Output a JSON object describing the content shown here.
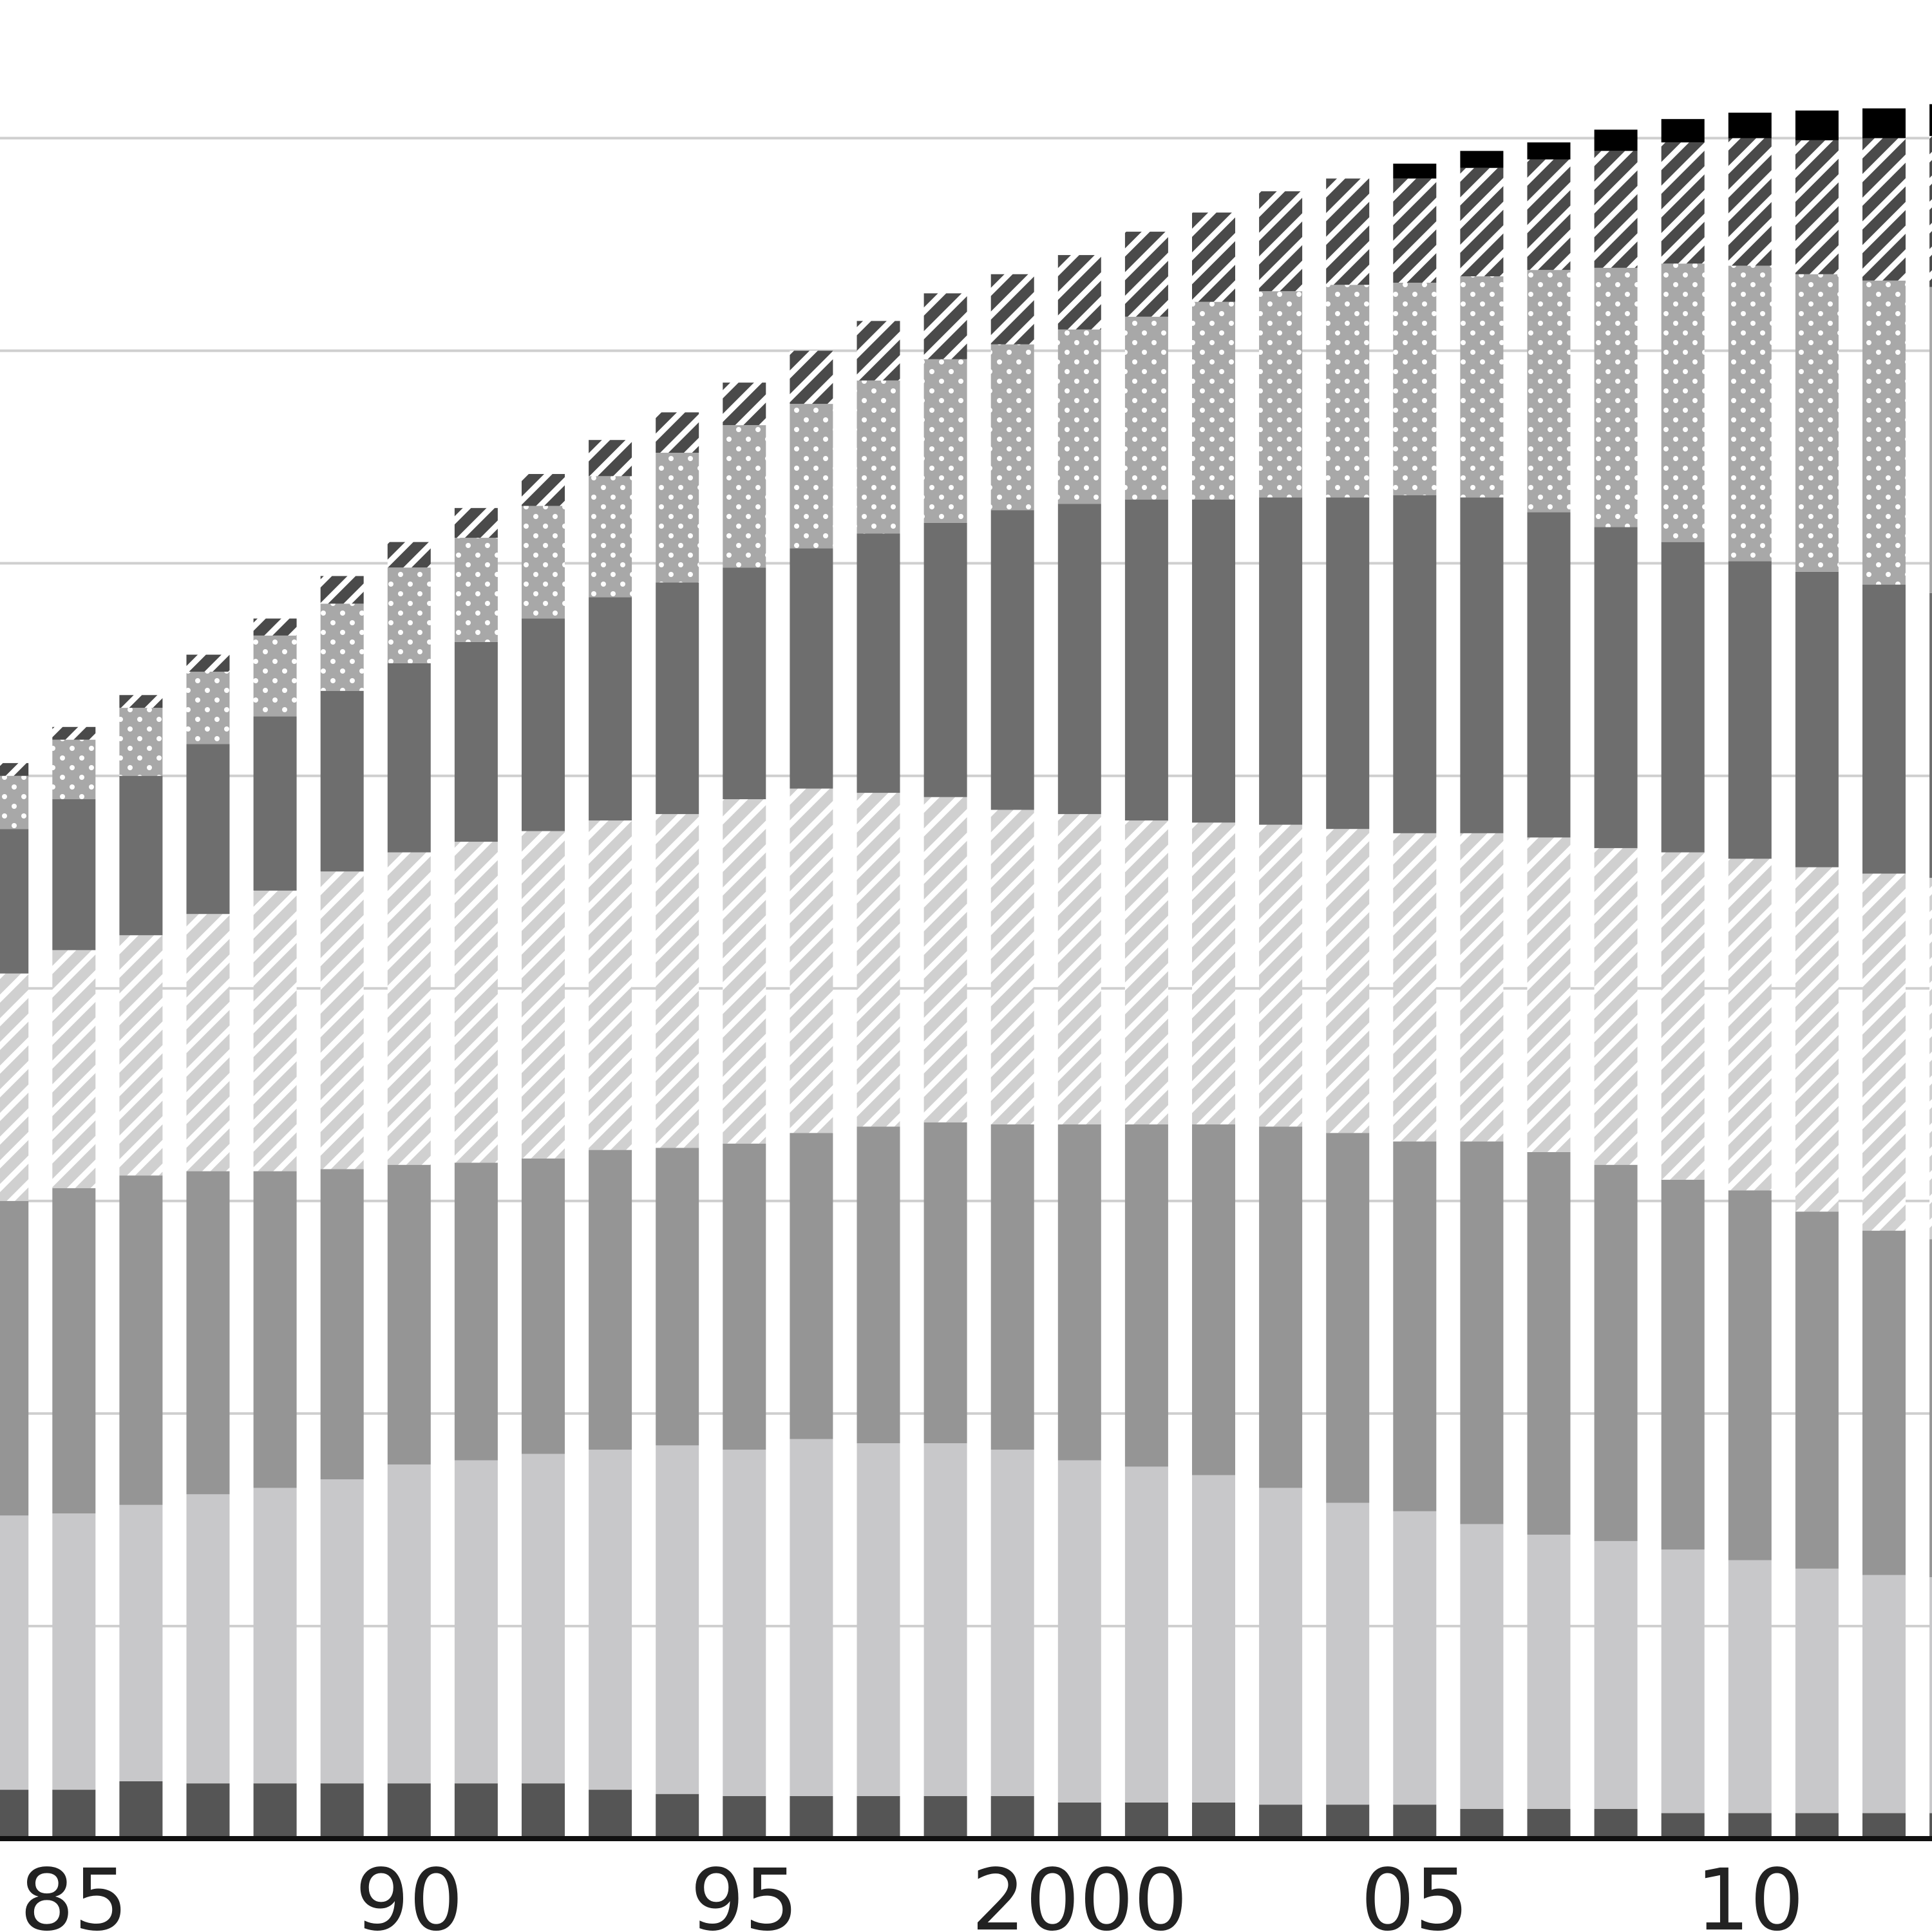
{
  "chart_data": {
    "type": "stacked-bar",
    "categories": [
      null,
      "85",
      null,
      null,
      null,
      null,
      "90",
      null,
      null,
      null,
      null,
      "95",
      null,
      null,
      null,
      null,
      "2000",
      null,
      null,
      null,
      null,
      "05",
      null,
      null,
      null,
      null,
      "10",
      null,
      null,
      null
    ],
    "series": [
      {
        "color": "#555555",
        "pattern": "none",
        "values": [
          0.23,
          0.23,
          0.27,
          0.26,
          0.26,
          0.26,
          0.26,
          0.26,
          0.26,
          0.23,
          0.21,
          0.2,
          0.2,
          0.2,
          0.2,
          0.2,
          0.17,
          0.17,
          0.17,
          0.16,
          0.16,
          0.16,
          0.14,
          0.14,
          0.14,
          0.12,
          0.12,
          0.12,
          0.12,
          0.12
        ]
      },
      {
        "color": "#c8c8ca",
        "pattern": "none",
        "values": [
          1.29,
          1.3,
          1.3,
          1.36,
          1.39,
          1.43,
          1.5,
          1.52,
          1.55,
          1.6,
          1.64,
          1.63,
          1.68,
          1.66,
          1.66,
          1.63,
          1.61,
          1.58,
          1.54,
          1.49,
          1.42,
          1.38,
          1.34,
          1.29,
          1.26,
          1.24,
          1.19,
          1.15,
          1.12,
          1.11
        ]
      },
      {
        "color": "#959595",
        "pattern": "none",
        "values": [
          1.48,
          1.53,
          1.55,
          1.52,
          1.49,
          1.46,
          1.41,
          1.4,
          1.39,
          1.41,
          1.4,
          1.44,
          1.44,
          1.49,
          1.51,
          1.53,
          1.58,
          1.61,
          1.65,
          1.7,
          1.74,
          1.74,
          1.8,
          1.8,
          1.77,
          1.74,
          1.74,
          1.68,
          1.62,
          1.59
        ]
      },
      {
        "color": "#d0d0d0",
        "pattern": "hatch",
        "values": [
          1.07,
          1.12,
          1.13,
          1.21,
          1.32,
          1.4,
          1.47,
          1.51,
          1.54,
          1.55,
          1.57,
          1.62,
          1.62,
          1.57,
          1.53,
          1.48,
          1.46,
          1.43,
          1.42,
          1.42,
          1.43,
          1.45,
          1.45,
          1.48,
          1.49,
          1.54,
          1.56,
          1.62,
          1.68,
          1.7
        ]
      },
      {
        "color": "#6e6e6e",
        "pattern": "none",
        "values": [
          0.68,
          0.71,
          0.75,
          0.8,
          0.82,
          0.85,
          0.89,
          0.94,
          1.0,
          1.05,
          1.09,
          1.09,
          1.13,
          1.22,
          1.29,
          1.41,
          1.46,
          1.51,
          1.52,
          1.54,
          1.56,
          1.59,
          1.58,
          1.53,
          1.51,
          1.46,
          1.4,
          1.39,
          1.36,
          1.34
        ]
      },
      {
        "color": "#a8a8a8",
        "pattern": "dots",
        "values": [
          0.25,
          0.28,
          0.32,
          0.34,
          0.38,
          0.41,
          0.45,
          0.49,
          0.53,
          0.57,
          0.61,
          0.67,
          0.68,
          0.72,
          0.77,
          0.78,
          0.82,
          0.86,
          0.93,
          0.97,
          1.0,
          1.0,
          1.04,
          1.14,
          1.22,
          1.31,
          1.39,
          1.4,
          1.43,
          1.44
        ]
      },
      {
        "color": "#4a4a4a",
        "pattern": "hatch",
        "values": [
          0.06,
          0.06,
          0.06,
          0.08,
          0.08,
          0.13,
          0.12,
          0.14,
          0.15,
          0.17,
          0.19,
          0.2,
          0.25,
          0.28,
          0.31,
          0.33,
          0.35,
          0.4,
          0.42,
          0.47,
          0.5,
          0.49,
          0.51,
          0.52,
          0.55,
          0.57,
          0.6,
          0.63,
          0.67,
          0.71
        ]
      },
      {
        "color": "#000000",
        "pattern": "none",
        "values": [
          0,
          0,
          0,
          0,
          0,
          0,
          0,
          0,
          0,
          0,
          0,
          0,
          0,
          0,
          0,
          0,
          0,
          0,
          0,
          0,
          0,
          0.07,
          0.08,
          0.08,
          0.1,
          0.11,
          0.12,
          0.14,
          0.14,
          0.15
        ]
      }
    ],
    "ylim": [
      0,
      8.65
    ],
    "yticks": [
      0,
      1,
      2,
      3,
      4,
      5,
      6,
      7,
      8
    ],
    "grid": true
  }
}
